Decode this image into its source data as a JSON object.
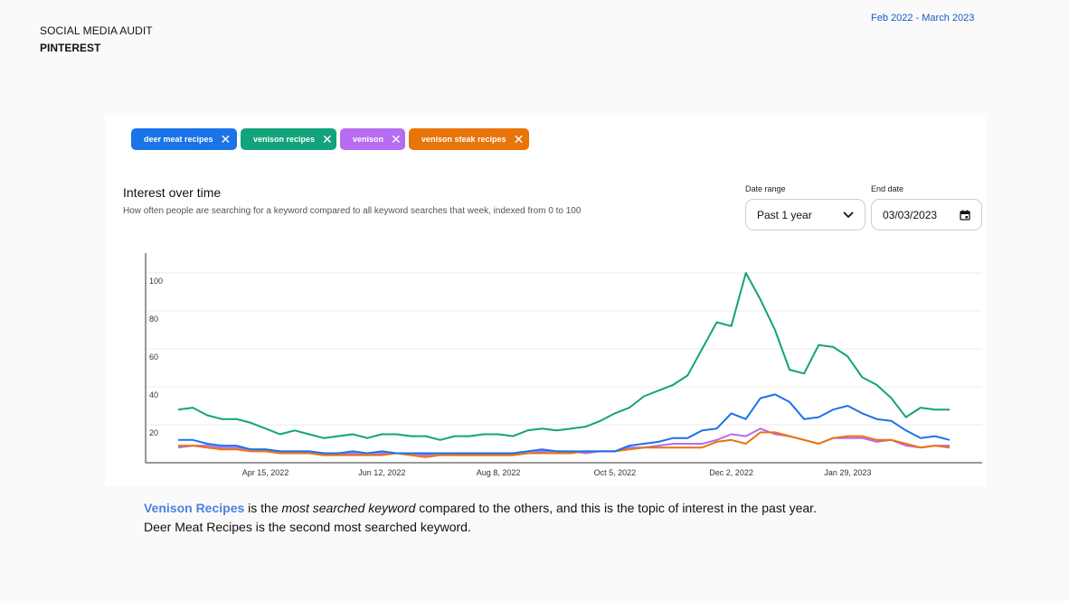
{
  "header": {
    "title": "SOCIAL MEDIA AUDIT",
    "subtitle": "PINTEREST",
    "date_span": "Feb 2022 - March 2023"
  },
  "keywords": [
    {
      "label": "deer meat recipes",
      "color": "#1a73e8"
    },
    {
      "label": "venison recipes",
      "color": "#12a37a"
    },
    {
      "label": "venison",
      "color": "#b56cf0"
    },
    {
      "label": "venison steak recipes",
      "color": "#e8740a"
    }
  ],
  "chart_header": {
    "title": "Interest over time",
    "subtitle": "How often people are searching for a keyword compared to all keyword searches that week, indexed from 0 to 100"
  },
  "controls": {
    "date_range_label": "Date range",
    "date_range_value": "Past 1 year",
    "end_date_label": "End date",
    "end_date_value": "03/03/2023"
  },
  "chart_data": {
    "type": "line",
    "x_tick_labels": [
      "Apr 15, 2022",
      "Jun 12, 2022",
      "Aug 8, 2022",
      "Oct 5, 2022",
      "Dec 2, 2022",
      "Jan 29, 2023"
    ],
    "y_tick_labels": [
      "20",
      "40",
      "60",
      "80",
      "100"
    ],
    "ylim": [
      0,
      105
    ],
    "grid": true,
    "x_index_note": "weekly points, 0..53",
    "series": [
      {
        "name": "deer meat recipes",
        "color": "#1a73e8",
        "values": [
          12,
          12,
          10,
          9,
          9,
          7,
          7,
          6,
          6,
          6,
          5,
          5,
          6,
          5,
          6,
          5,
          5,
          5,
          5,
          5,
          5,
          5,
          5,
          5,
          6,
          7,
          6,
          6,
          6,
          6,
          6,
          9,
          10,
          11,
          13,
          13,
          17,
          18,
          26,
          23,
          34,
          36,
          32,
          23,
          24,
          28,
          30,
          26,
          23,
          22,
          17,
          13,
          14,
          12
        ]
      },
      {
        "name": "venison recipes",
        "color": "#12a37a",
        "values": [
          28,
          29,
          25,
          23,
          23,
          21,
          18,
          15,
          17,
          15,
          13,
          14,
          15,
          13,
          15,
          15,
          14,
          14,
          12,
          14,
          14,
          15,
          15,
          14,
          17,
          18,
          17,
          18,
          19,
          22,
          26,
          29,
          35,
          38,
          41,
          46,
          60,
          74,
          72,
          100,
          86,
          70,
          49,
          47,
          62,
          61,
          56,
          45,
          41,
          34,
          24,
          29,
          28,
          28
        ]
      },
      {
        "name": "venison",
        "color": "#b56cf0",
        "values": [
          8,
          9,
          9,
          8,
          8,
          7,
          7,
          6,
          6,
          6,
          5,
          4,
          5,
          4,
          5,
          5,
          5,
          4,
          5,
          4,
          4,
          4,
          4,
          4,
          5,
          6,
          6,
          6,
          5,
          6,
          6,
          8,
          8,
          9,
          10,
          10,
          10,
          12,
          15,
          14,
          18,
          15,
          14,
          12,
          10,
          13,
          13,
          13,
          11,
          12,
          9,
          8,
          9,
          9
        ]
      },
      {
        "name": "venison steak recipes",
        "color": "#e8740a",
        "values": [
          9,
          9,
          8,
          7,
          7,
          6,
          6,
          5,
          5,
          5,
          4,
          4,
          4,
          4,
          4,
          5,
          4,
          3,
          4,
          4,
          4,
          4,
          4,
          4,
          5,
          5,
          5,
          5,
          6,
          6,
          6,
          7,
          8,
          8,
          8,
          8,
          8,
          11,
          12,
          10,
          16,
          16,
          14,
          12,
          10,
          13,
          14,
          14,
          12,
          12,
          10,
          8,
          9,
          8
        ]
      }
    ]
  },
  "caption": {
    "highlight": "Venison Recipes",
    "part1": " is the ",
    "emphasis": "most searched keyword",
    "part2": " compared to the others, and this is the topic of interest in the past year.",
    "line2": "Deer Meat Recipes is the second most searched keyword."
  }
}
